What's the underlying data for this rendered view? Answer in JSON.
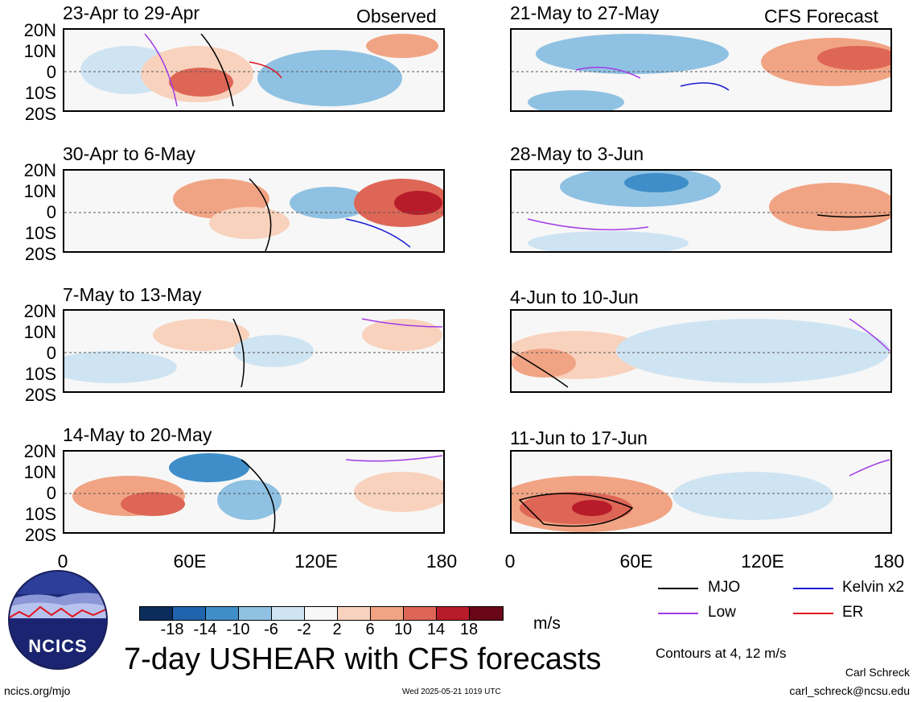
{
  "panels": [
    {
      "title": "23-Apr to 29-Apr",
      "tag": "Observed"
    },
    {
      "title": "21-May to 27-May",
      "tag": "CFS Forecast"
    },
    {
      "title": "30-Apr to 6-May",
      "tag": ""
    },
    {
      "title": "28-May to 3-Jun",
      "tag": ""
    },
    {
      "title": "7-May to 13-May",
      "tag": ""
    },
    {
      "title": "4-Jun to 10-Jun",
      "tag": ""
    },
    {
      "title": "14-May to 20-May",
      "tag": ""
    },
    {
      "title": "11-Jun to 17-Jun",
      "tag": ""
    }
  ],
  "lat_labels": [
    "20N",
    "10N",
    "0",
    "10S",
    "20S"
  ],
  "lon_labels": [
    "0",
    "60E",
    "120E",
    "180"
  ],
  "colorbar": {
    "colors": [
      "#0a2d5c",
      "#1f64ad",
      "#3f8ec9",
      "#8fc1e2",
      "#cfe4f2",
      "#f7f7f7",
      "#f8d2bd",
      "#f1a484",
      "#de6656",
      "#b81c2a",
      "#690618"
    ],
    "labels": [
      "-18",
      "-14",
      "-10",
      "-6",
      "-2",
      "2",
      "6",
      "10",
      "14",
      "18"
    ],
    "units": "m/s"
  },
  "legend": {
    "items": [
      {
        "label": "MJO",
        "color": "#000000"
      },
      {
        "label": "Kelvin x2",
        "color": "#1a1ad6"
      },
      {
        "label": "Low",
        "color": "#a23be6"
      },
      {
        "label": "ER",
        "color": "#e0141e"
      }
    ],
    "contours_note": "Contours at 4, 12 m/s"
  },
  "main_title": "7-day USHEAR with CFS forecasts",
  "logo_text": "NCICS",
  "footer": {
    "url": "ncics.org/mjo",
    "timestamp": "Wed 2025-05-21 1019 UTC",
    "author": "Carl Schreck",
    "email": "carl_schreck@ncsu.edu"
  }
}
